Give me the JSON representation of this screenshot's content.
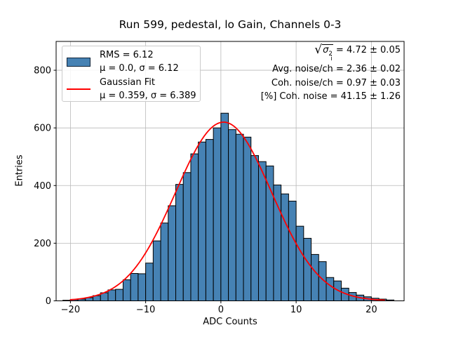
{
  "title": "Run 599, pedestal, lo Gain, Channels 0-3",
  "axes": {
    "xlabel": "ADC Counts",
    "ylabel": "Entries"
  },
  "legend": {
    "hist_line1": "RMS = 6.12",
    "hist_line2": "μ = 0.0, σ = 6.12",
    "fit_line1": "Gaussian Fit",
    "fit_line2": "μ = 0.359, σ = 6.389"
  },
  "annotations": {
    "sqrt": {
      "radical": "√",
      "symbol": "σ",
      "sub": "i",
      "sup": "2",
      "value": " = 4.72 ± 0.05"
    },
    "lines": [
      "Avg. noise/ch = 2.36 ± 0.02",
      "Coh. noise/ch = 0.97 ± 0.03",
      "[%] Coh. noise = 41.15 ± 1.26"
    ]
  },
  "chart_data": {
    "type": "bar",
    "subtype": "histogram",
    "title": "Run 599, pedestal, lo Gain, Channels 0-3",
    "xlabel": "ADC Counts",
    "ylabel": "Entries",
    "bin_width": 1,
    "bin_edges_start": -21,
    "bin_edges_end": 22,
    "counts": [
      2,
      4,
      6,
      11,
      18,
      28,
      38,
      40,
      73,
      95,
      94,
      131,
      208,
      270,
      330,
      404,
      445,
      510,
      551,
      560,
      600,
      651,
      594,
      578,
      568,
      504,
      483,
      468,
      402,
      371,
      346,
      259,
      217,
      161,
      136,
      81,
      69,
      44,
      29,
      20,
      14,
      9,
      6,
      3
    ],
    "gaussian_fit": {
      "amplitude": 620,
      "mu": 0.359,
      "sigma": 6.389,
      "x_range": [
        -20.0,
        21.9
      ]
    },
    "xticks": [
      -20,
      -10,
      0,
      10,
      20
    ],
    "yticks": [
      0,
      200,
      400,
      600,
      800
    ],
    "xlim": [
      -21.9,
      24.35
    ],
    "ylim": [
      0,
      900
    ],
    "grid": true,
    "legend_position": "upper left",
    "colors": {
      "bar_fill": "#4682b4",
      "bar_edge": "#000000",
      "fit_line": "#ff0000",
      "grid": "#b8b8b8",
      "spine": "#000000",
      "tick": "#000000"
    }
  }
}
